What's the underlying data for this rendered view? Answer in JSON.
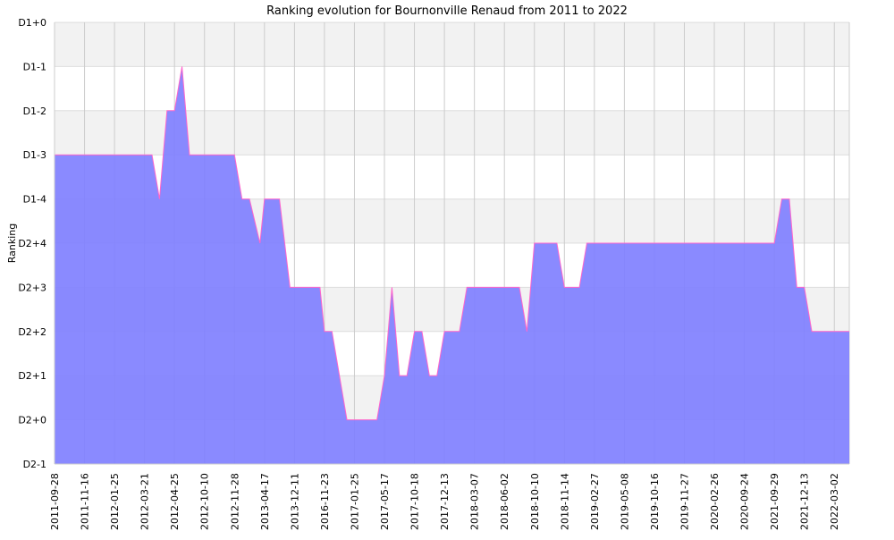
{
  "chart_data": {
    "type": "area",
    "title": "Ranking evolution for Bournonville Renaud from 2011 to 2022",
    "xlabel": "",
    "ylabel": "Ranking",
    "y_tick_labels": [
      "D2-1",
      "D2+0",
      "D2+1",
      "D2+2",
      "D2+3",
      "D2+4",
      "D1-4",
      "D1-3",
      "D1-2",
      "D1-1",
      "D1+0"
    ],
    "x_tick_labels": [
      "2011-09-28",
      "2011-11-16",
      "2012-01-25",
      "2012-03-21",
      "2012-04-25",
      "2012-10-10",
      "2012-11-28",
      "2013-04-17",
      "2013-12-11",
      "2016-11-23",
      "2017-01-25",
      "2017-05-17",
      "2017-10-18",
      "2017-12-13",
      "2018-03-07",
      "2018-06-02",
      "2018-10-10",
      "2018-11-14",
      "2019-02-27",
      "2019-05-08",
      "2019-10-16",
      "2019-11-27",
      "2020-02-26",
      "2020-09-24",
      "2021-09-29",
      "2021-12-13",
      "2022-03-02"
    ],
    "x_range": [
      0,
      26.5
    ],
    "y_range": [
      0,
      10
    ],
    "grid": true,
    "colors": {
      "fill": "#8080ff",
      "fill_opacity": 0.92,
      "line": "#ff66cc",
      "band": "#f2f2f2",
      "grid": "#cccccc"
    },
    "series": [
      {
        "x": [
          0,
          2,
          3.25,
          3.5,
          3.75,
          4,
          4.25,
          4.5,
          4.75,
          5,
          6,
          6.25,
          6.5,
          6.85,
          7,
          7.25,
          7.5,
          7.85,
          8,
          8.85,
          9,
          9.25,
          9.5,
          9.75,
          10,
          10.25,
          10.75,
          11,
          11.25,
          11.5,
          11.75,
          12,
          12.25,
          12.5,
          12.75,
          13,
          13.25,
          13.5,
          13.75,
          14.25,
          14.5,
          15.5,
          15.75,
          16,
          16.75,
          17,
          17.5,
          17.75,
          18,
          23.75,
          24,
          24.25,
          24.5,
          24.75,
          25,
          25.25,
          26.5
        ],
        "y": [
          7,
          7,
          7,
          6,
          8,
          8,
          9,
          7,
          7,
          7,
          7,
          6,
          6,
          5,
          6,
          6,
          6,
          4,
          4,
          4,
          3,
          3,
          2,
          1,
          1,
          1,
          1,
          2,
          4,
          2,
          2,
          3,
          3,
          2,
          2,
          3,
          3,
          3,
          4,
          4,
          4,
          4,
          3,
          5,
          5,
          4,
          4,
          5,
          5,
          5,
          5,
          6,
          6,
          4,
          4,
          3,
          3
        ]
      }
    ]
  }
}
